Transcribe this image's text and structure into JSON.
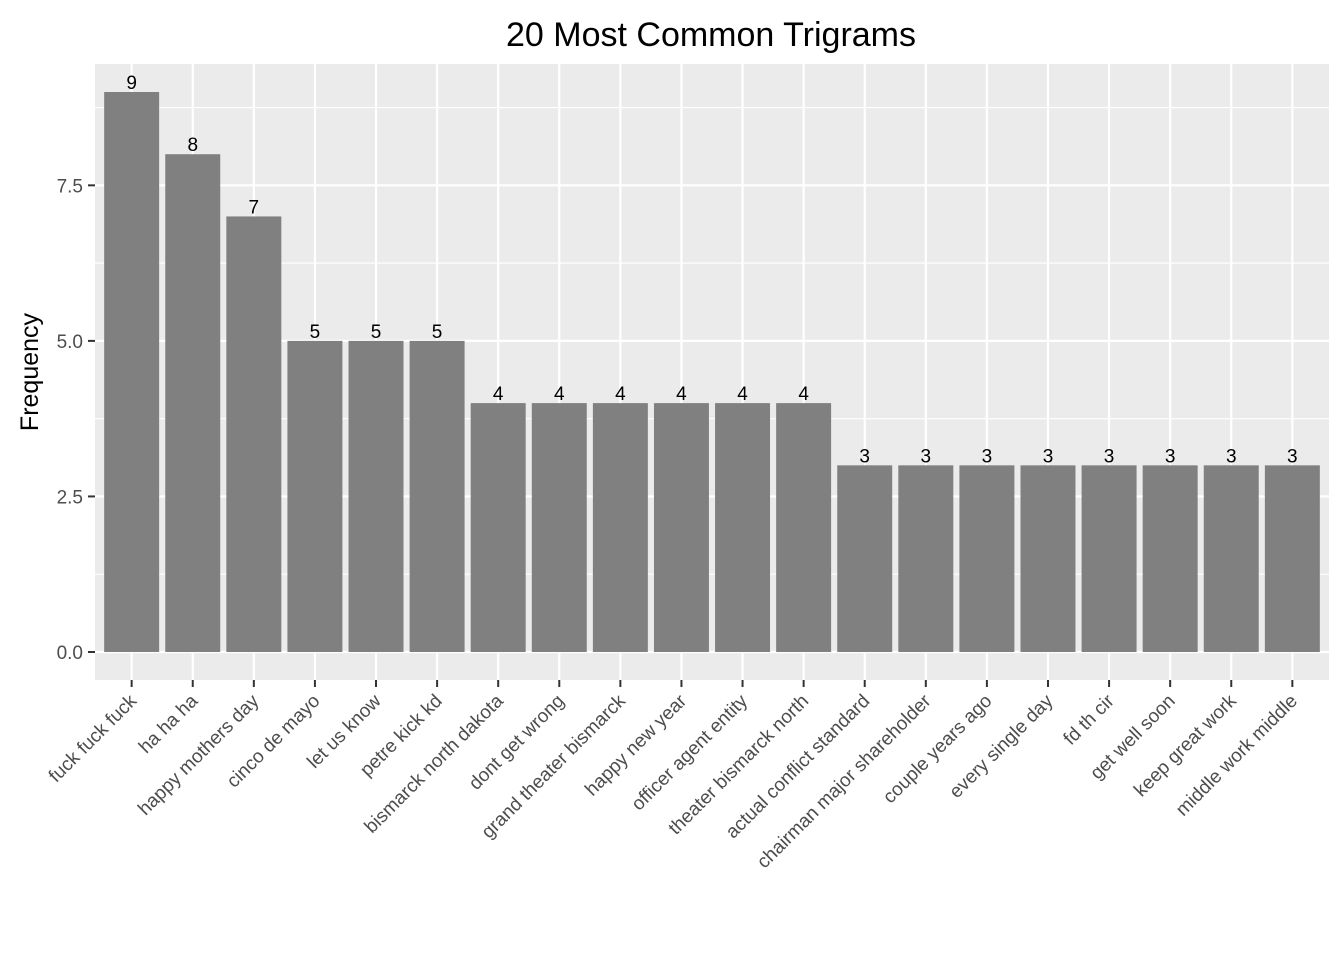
{
  "chart_data": {
    "type": "bar",
    "title": "20 Most Common Trigrams",
    "xlabel": "",
    "ylabel": "Frequency",
    "categories": [
      "fuck fuck fuck",
      "ha ha ha",
      "happy mothers day",
      "cinco de mayo",
      "let us know",
      "petre kick kd",
      "bismarck north dakota",
      "dont get wrong",
      "grand theater bismarck",
      "happy new year",
      "officer agent entity",
      "theater bismarck north",
      "actual conflict standard",
      "chairman major shareholder",
      "couple years ago",
      "every single day",
      "fd th cir",
      "get well soon",
      "keep great work",
      "middle work middle"
    ],
    "values": [
      9,
      8,
      7,
      5,
      5,
      5,
      4,
      4,
      4,
      4,
      4,
      4,
      3,
      3,
      3,
      3,
      3,
      3,
      3,
      3
    ],
    "data_labels": [
      "9",
      "8",
      "7",
      "5",
      "5",
      "5",
      "4",
      "4",
      "4",
      "4",
      "4",
      "4",
      "3",
      "3",
      "3",
      "3",
      "3",
      "3",
      "3",
      "3"
    ],
    "yticks": [
      0,
      2.5,
      5,
      7.5
    ],
    "ytick_labels": [
      "0.0",
      "2.5",
      "5.0",
      "7.5"
    ],
    "ylim": [
      -0.45,
      9.45
    ],
    "grid": true,
    "legend": "none",
    "colors": {
      "bar": "#808080",
      "panel": "#ebebeb",
      "grid_major": "#ffffff",
      "tick": "#333333"
    }
  }
}
